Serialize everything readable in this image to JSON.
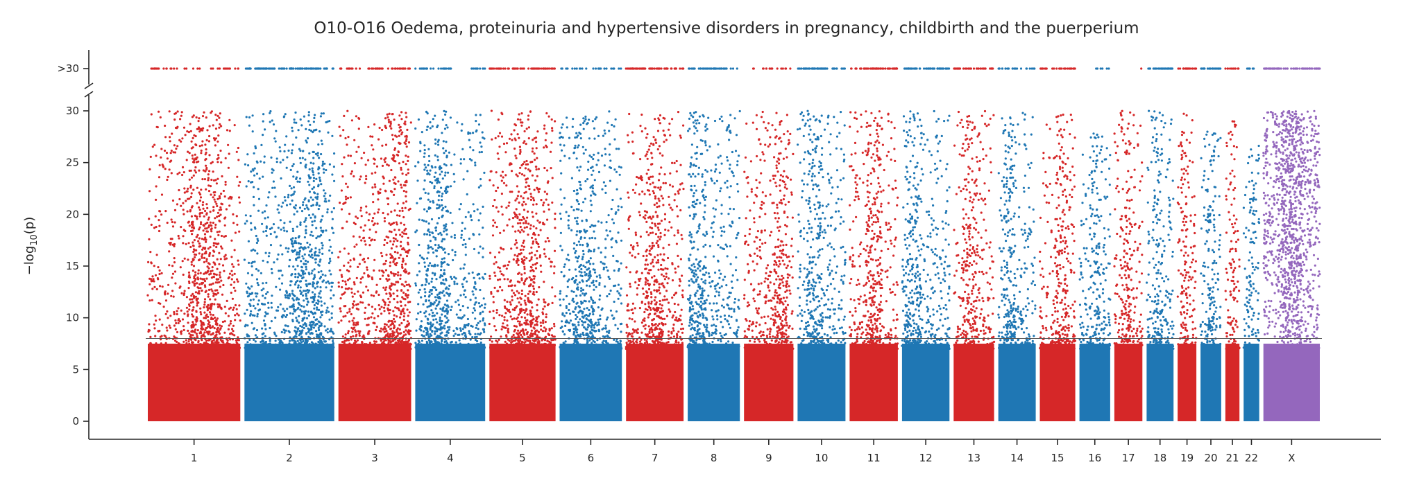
{
  "chart_data": {
    "type": "scatter",
    "subtype": "manhattan",
    "title": "O10-O16 Oedema, proteinuria and hypertensive disorders in pregnancy, childbirth and the puerperium",
    "xlabel": "",
    "ylabel": "−log10(p)",
    "ylabel_parts": {
      "pre": "−log",
      "sub": "10",
      "post": "(p)"
    },
    "ylim": [
      0,
      30
    ],
    "yticks": [
      0,
      5,
      10,
      15,
      20,
      25,
      30
    ],
    "y_break_label": ">30",
    "y_break_value": 30,
    "threshold_line": 8,
    "grid": false,
    "colors": {
      "odd": "#d62728",
      "even": "#1f77b4",
      "X": "#9467bd",
      "axis": "#262626"
    },
    "series": [
      {
        "name": "1",
        "start": 0,
        "end": 249,
        "density": 1.0,
        "hotspot": 0.62,
        "capped": 0.55,
        "top": 30
      },
      {
        "name": "2",
        "start": 249,
        "end": 491,
        "density": 1.0,
        "hotspot": 0.7,
        "capped": 0.95,
        "top": 30
      },
      {
        "name": "3",
        "start": 491,
        "end": 689,
        "density": 1.0,
        "hotspot": 0.8,
        "capped": 0.75,
        "top": 30
      },
      {
        "name": "4",
        "start": 689,
        "end": 880,
        "density": 0.95,
        "hotspot": 0.3,
        "capped": 0.6,
        "top": 30
      },
      {
        "name": "5",
        "start": 880,
        "end": 1061,
        "density": 1.0,
        "hotspot": 0.55,
        "capped": 0.85,
        "top": 30
      },
      {
        "name": "6",
        "start": 1061,
        "end": 1232,
        "density": 0.9,
        "hotspot": 0.4,
        "capped": 0.55,
        "top": 30
      },
      {
        "name": "7",
        "start": 1232,
        "end": 1391,
        "density": 0.95,
        "hotspot": 0.5,
        "capped": 0.9,
        "top": 30
      },
      {
        "name": "8",
        "start": 1391,
        "end": 1536,
        "density": 0.9,
        "hotspot": 0.2,
        "capped": 0.8,
        "top": 30
      },
      {
        "name": "9",
        "start": 1536,
        "end": 1674,
        "density": 0.85,
        "hotspot": 0.7,
        "capped": 0.55,
        "top": 30
      },
      {
        "name": "10",
        "start": 1674,
        "end": 1808,
        "density": 0.9,
        "hotspot": 0.35,
        "capped": 0.95,
        "top": 30
      },
      {
        "name": "11",
        "start": 1808,
        "end": 1943,
        "density": 0.9,
        "hotspot": 0.5,
        "capped": 0.95,
        "top": 30
      },
      {
        "name": "12",
        "start": 1943,
        "end": 2076,
        "density": 0.9,
        "hotspot": 0.25,
        "capped": 0.9,
        "top": 30
      },
      {
        "name": "13",
        "start": 2076,
        "end": 2191,
        "density": 0.8,
        "hotspot": 0.4,
        "capped": 0.85,
        "top": 30
      },
      {
        "name": "14",
        "start": 2191,
        "end": 2298,
        "density": 0.85,
        "hotspot": 0.3,
        "capped": 0.7,
        "top": 30
      },
      {
        "name": "15",
        "start": 2298,
        "end": 2400,
        "density": 0.85,
        "hotspot": 0.6,
        "capped": 0.8,
        "top": 30
      },
      {
        "name": "16",
        "start": 2400,
        "end": 2490,
        "density": 0.8,
        "hotspot": 0.5,
        "capped": 0.4,
        "top": 28
      },
      {
        "name": "17",
        "start": 2490,
        "end": 2573,
        "density": 0.85,
        "hotspot": 0.4,
        "capped": 0.3,
        "top": 30
      },
      {
        "name": "18",
        "start": 2573,
        "end": 2653,
        "density": 0.85,
        "hotspot": 0.4,
        "capped": 0.95,
        "top": 30
      },
      {
        "name": "19",
        "start": 2653,
        "end": 2712,
        "density": 0.85,
        "hotspot": 0.35,
        "capped": 0.95,
        "top": 30
      },
      {
        "name": "20",
        "start": 2712,
        "end": 2776,
        "density": 0.8,
        "hotspot": 0.5,
        "capped": 0.9,
        "top": 28
      },
      {
        "name": "21",
        "start": 2776,
        "end": 2823,
        "density": 0.7,
        "hotspot": 0.5,
        "capped": 0.8,
        "top": 29
      },
      {
        "name": "22",
        "start": 2823,
        "end": 2874,
        "density": 0.7,
        "hotspot": 0.5,
        "capped": 0.55,
        "top": 27
      },
      {
        "name": "X",
        "start": 2874,
        "end": 3030,
        "density": 1.6,
        "hotspot": 0.5,
        "capped": 1.0,
        "top": 30
      }
    ]
  }
}
